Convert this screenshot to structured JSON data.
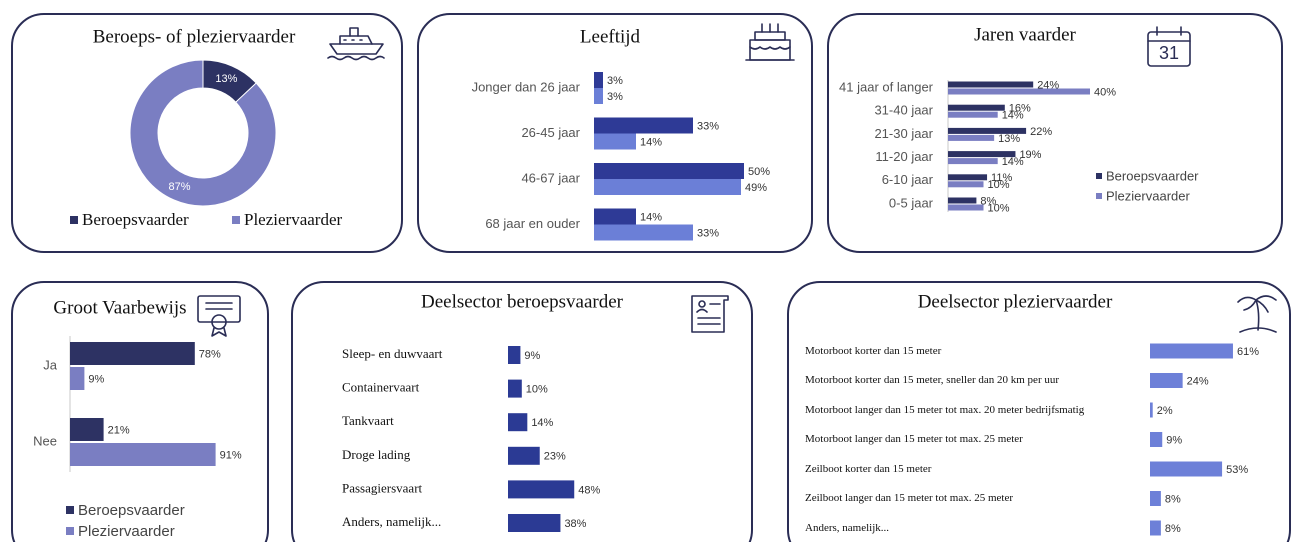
{
  "chart_data": [
    {
      "type": "donut",
      "title": "Beroeps- of pleziervaarder",
      "categories": [
        "Beroepsvaarder",
        "Pleziervaarder"
      ],
      "values": [
        13,
        87
      ],
      "value_labels": [
        "13%",
        "87%"
      ],
      "colors": [
        "#2d3263",
        "#7a7ec2"
      ],
      "legend": "bottom"
    },
    {
      "type": "barh",
      "title": "Leeftijd",
      "categories": [
        "Jonger dan 26 jaar",
        "26-45 jaar",
        "46-67 jaar",
        "68 jaar en ouder"
      ],
      "series": [
        {
          "color": "#2e3a96",
          "values": [
            3,
            33,
            50,
            14
          ],
          "value_labels": [
            "3%",
            "33%",
            "50%",
            "14%"
          ]
        },
        {
          "color": "#6b7fd7",
          "values": [
            3,
            14,
            49,
            33
          ],
          "value_labels": [
            "3%",
            "14%",
            "49%",
            "33%"
          ]
        }
      ]
    },
    {
      "type": "barh",
      "title": "Jaren vaarder",
      "annotation": "31",
      "categories": [
        "41 jaar of langer",
        "31-40 jaar",
        "21-30 jaar",
        "11-20 jaar",
        "6-10 jaar",
        "0-5 jaar"
      ],
      "series": [
        {
          "name": "Beroepsvaarder",
          "color": "#2d3263",
          "values": [
            24,
            16,
            22,
            19,
            11,
            8
          ],
          "value_labels": [
            "24%",
            "16%",
            "22%",
            "19%",
            "11%",
            "8%"
          ]
        },
        {
          "name": "Pleziervaarder",
          "color": "#7a7ec2",
          "values": [
            40,
            14,
            13,
            14,
            10,
            10
          ],
          "value_labels": [
            "40%",
            "14%",
            "13%",
            "14%",
            "10%",
            "10%"
          ]
        }
      ],
      "legend": "right"
    },
    {
      "type": "barh",
      "title": "Groot Vaarbewijs",
      "categories": [
        "Ja",
        "Nee"
      ],
      "series": [
        {
          "name": "Beroepsvaarder",
          "color": "#2d3263",
          "values": [
            78,
            21
          ],
          "value_labels": [
            "78%",
            "21%"
          ]
        },
        {
          "name": "Pleziervaarder",
          "color": "#7a7ec2",
          "values": [
            9,
            91
          ],
          "value_labels": [
            "9%",
            "91%"
          ]
        }
      ],
      "legend": "bottom"
    },
    {
      "type": "barh",
      "title": "Deelsector beroepsvaarder",
      "categories": [
        "Sleep- en duwvaart",
        "Containervaart",
        "Tankvaart",
        "Droge lading",
        "Passagiersvaart",
        "Anders, namelijk..."
      ],
      "values": [
        9,
        10,
        14,
        23,
        48,
        38
      ],
      "value_labels": [
        "9%",
        "10%",
        "14%",
        "23%",
        "48%",
        "38%"
      ],
      "color": "#2b3a94"
    },
    {
      "type": "barh",
      "title": "Deelsector pleziervaarder",
      "categories": [
        "Motorboot korter dan 15 meter",
        "Motorboot korter dan 15 meter, sneller dan 20 km per uur",
        "Motorboot langer dan 15 meter tot max. 20 meter bedrijfsmatig",
        "Motorboot langer dan 15 meter tot max. 25 meter",
        "Zeilboot korter dan 15 meter",
        "Zeilboot langer dan 15 meter tot max. 25 meter",
        "Anders, namelijk..."
      ],
      "values": [
        61,
        24,
        2,
        9,
        53,
        8,
        8
      ],
      "value_labels": [
        "61%",
        "24%",
        "2%",
        "9%",
        "53%",
        "8%",
        "8%"
      ],
      "color": "#6d80d8"
    }
  ]
}
